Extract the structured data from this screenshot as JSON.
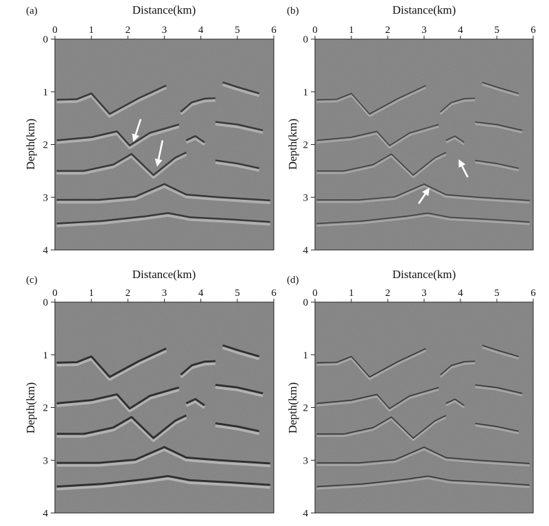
{
  "figure": {
    "panels": [
      {
        "label": "(a)",
        "x_axis_title": "Distance(km)",
        "y_axis_title": "Depth(km)",
        "x_ticks": [
          "0",
          "1",
          "2",
          "3",
          "4",
          "5",
          "6"
        ],
        "y_ticks": [
          "0",
          "1",
          "2",
          "3",
          "4"
        ],
        "arrows": 2,
        "style": "low-quality"
      },
      {
        "label": "(b)",
        "x_axis_title": "Distance(km)",
        "y_axis_title": "Depth(km)",
        "x_ticks": [
          "0",
          "1",
          "2",
          "3",
          "4",
          "5",
          "6"
        ],
        "y_ticks": [
          "0",
          "1",
          "2",
          "3",
          "4"
        ],
        "arrows": 2,
        "style": "noisy-thin"
      },
      {
        "label": "(c)",
        "x_axis_title": "Distance(km)",
        "y_axis_title": "Depth(km)",
        "x_ticks": [
          "0",
          "1",
          "2",
          "3",
          "4",
          "5",
          "6"
        ],
        "y_ticks": [
          "0",
          "1",
          "2",
          "3",
          "4"
        ],
        "arrows": 0,
        "style": "strong"
      },
      {
        "label": "(d)",
        "x_axis_title": "Distance(km)",
        "y_axis_title": "Depth(km)",
        "x_ticks": [
          "0",
          "1",
          "2",
          "3",
          "4",
          "5",
          "6"
        ],
        "y_ticks": [
          "0",
          "1",
          "2",
          "3",
          "4"
        ],
        "arrows": 0,
        "style": "clean-thin"
      }
    ],
    "colors": {
      "background": "#ffffff",
      "image_gray": "#808080",
      "reflector_dark": "#2a2a2a",
      "reflector_light": "#cfcfcf",
      "arrow": "#ffffff"
    }
  }
}
